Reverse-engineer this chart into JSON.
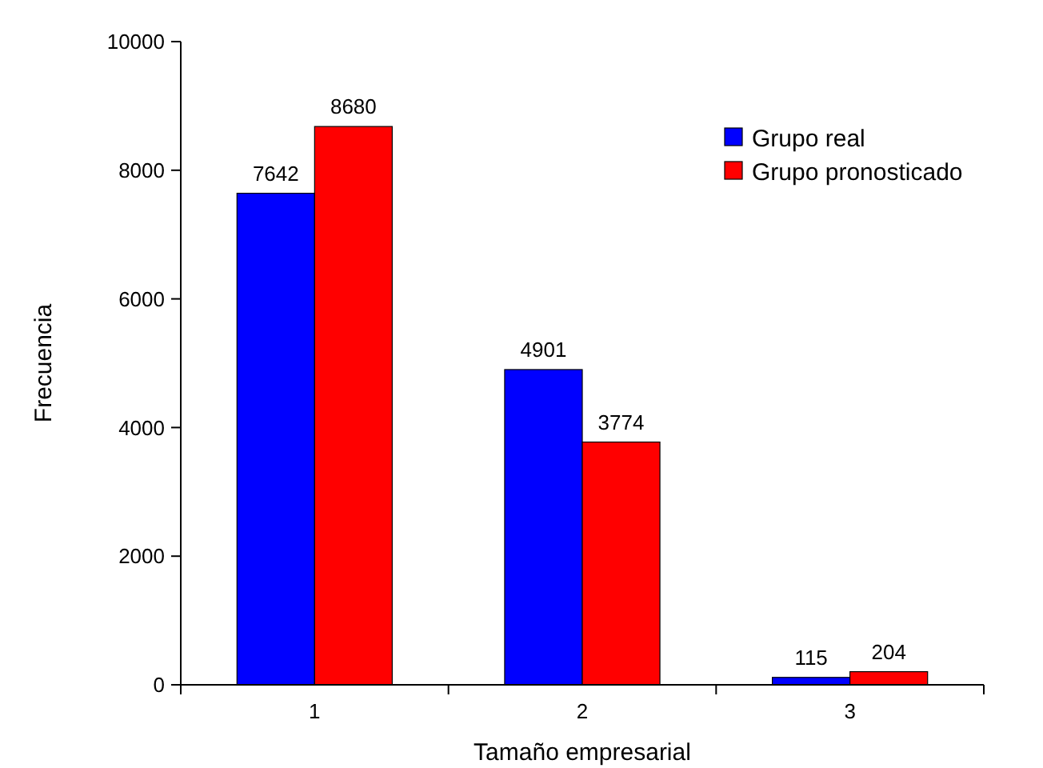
{
  "chart_data": {
    "type": "bar",
    "xlabel": "Tamaño empresarial",
    "ylabel": "Frecuencia",
    "categories": [
      "1",
      "2",
      "3"
    ],
    "series": [
      {
        "name": "Grupo real",
        "color": "#0000ff",
        "values": [
          7642,
          4901,
          115
        ]
      },
      {
        "name": "Grupo pronosticado",
        "color": "#ff0000",
        "values": [
          8680,
          3774,
          204
        ]
      }
    ],
    "ylim": [
      0,
      10000
    ],
    "yticks": [
      0,
      2000,
      4000,
      6000,
      8000,
      10000
    ],
    "data_labels": true,
    "legend": "top right",
    "grid": false
  }
}
